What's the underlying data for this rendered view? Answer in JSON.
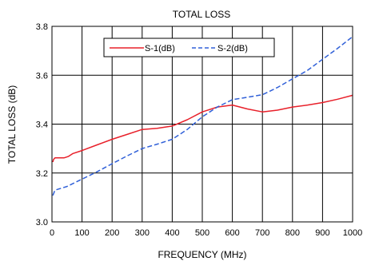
{
  "chart_data": {
    "type": "line",
    "title": "TOTAL LOSS",
    "xlabel": "FREQUENCY (MHz)",
    "ylabel": "TOTAL LOSS (dB)",
    "xlim": [
      0,
      1000
    ],
    "ylim": [
      3.0,
      3.8
    ],
    "xticks": [
      "0",
      "100",
      "200",
      "300",
      "400",
      "500",
      "600",
      "700",
      "800",
      "900",
      "1000"
    ],
    "yticks": [
      "3.0",
      "3.2",
      "3.4",
      "3.6",
      "3.8"
    ],
    "grid": true,
    "legend_position": "top-center",
    "series": [
      {
        "name": "S-1(dB)",
        "color": "#e8202a",
        "dash": "solid",
        "points": [
          [
            3,
            3.245
          ],
          [
            5,
            3.255
          ],
          [
            10,
            3.262
          ],
          [
            20,
            3.262
          ],
          [
            30,
            3.262
          ],
          [
            40,
            3.262
          ],
          [
            55,
            3.268
          ],
          [
            70,
            3.28
          ],
          [
            100,
            3.292
          ],
          [
            150,
            3.315
          ],
          [
            200,
            3.338
          ],
          [
            250,
            3.358
          ],
          [
            300,
            3.378
          ],
          [
            350,
            3.383
          ],
          [
            400,
            3.392
          ],
          [
            450,
            3.418
          ],
          [
            500,
            3.45
          ],
          [
            550,
            3.47
          ],
          [
            600,
            3.478
          ],
          [
            650,
            3.462
          ],
          [
            700,
            3.45
          ],
          [
            750,
            3.457
          ],
          [
            800,
            3.47
          ],
          [
            850,
            3.478
          ],
          [
            900,
            3.488
          ],
          [
            950,
            3.502
          ],
          [
            1000,
            3.518
          ]
        ]
      },
      {
        "name": "S-2(dB)",
        "color": "#3060d8",
        "dash": "dashed",
        "points": [
          [
            3,
            3.108
          ],
          [
            10,
            3.13
          ],
          [
            50,
            3.145
          ],
          [
            100,
            3.175
          ],
          [
            150,
            3.205
          ],
          [
            200,
            3.238
          ],
          [
            250,
            3.27
          ],
          [
            300,
            3.3
          ],
          [
            350,
            3.318
          ],
          [
            400,
            3.338
          ],
          [
            450,
            3.378
          ],
          [
            500,
            3.43
          ],
          [
            550,
            3.47
          ],
          [
            600,
            3.5
          ],
          [
            650,
            3.51
          ],
          [
            700,
            3.52
          ],
          [
            750,
            3.55
          ],
          [
            800,
            3.585
          ],
          [
            850,
            3.62
          ],
          [
            900,
            3.665
          ],
          [
            950,
            3.71
          ],
          [
            1000,
            3.758
          ]
        ]
      }
    ]
  }
}
